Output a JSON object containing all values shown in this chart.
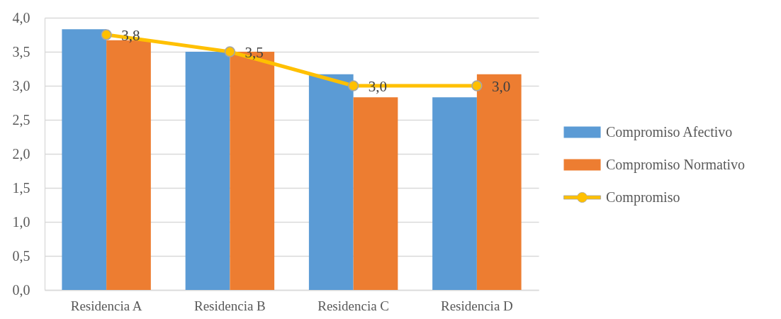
{
  "chart_data": {
    "type": "bar",
    "categories": [
      "Residencia A",
      "Residencia B",
      "Residencia C",
      "Residencia D"
    ],
    "series": [
      {
        "name": "Compromiso Afectivo",
        "color": "#5b9bd5",
        "values": [
          3.83,
          3.5,
          3.17,
          2.83
        ]
      },
      {
        "name": "Compromiso Normativo",
        "color": "#ed7d31",
        "values": [
          3.67,
          3.5,
          2.83,
          3.17
        ]
      },
      {
        "name": "Compromiso",
        "type": "line",
        "color": "#ffc000",
        "values": [
          3.75,
          3.5,
          3.0,
          3.0
        ],
        "value_labels": [
          "3,8",
          "3,5",
          "3,0",
          "3,0"
        ]
      }
    ],
    "ylim": [
      0,
      4
    ],
    "yticks": [
      {
        "value": 0,
        "label": "0,0"
      },
      {
        "value": 0.5,
        "label": "0,5"
      },
      {
        "value": 1,
        "label": "1,0"
      },
      {
        "value": 1.5,
        "label": "1,5"
      },
      {
        "value": 2,
        "label": "2,0"
      },
      {
        "value": 2.5,
        "label": "2,5"
      },
      {
        "value": 3,
        "label": "3,0"
      },
      {
        "value": 3.5,
        "label": "3,5"
      },
      {
        "value": 4,
        "label": "4,0"
      }
    ],
    "grid": "y",
    "legend": "right",
    "marker": "circle"
  }
}
